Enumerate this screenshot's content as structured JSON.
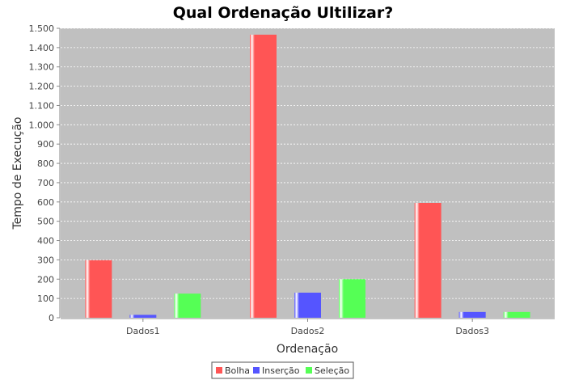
{
  "chart_data": {
    "type": "bar",
    "title": "Qual Ordenação Ultilizar?",
    "xlabel": "Ordenação",
    "ylabel": "Tempo de Execução",
    "categories": [
      "Dados1",
      "Dados2",
      "Dados3"
    ],
    "series": [
      {
        "name": "Bolha",
        "color": "#ff5555",
        "values": [
          298,
          1467,
          595
        ]
      },
      {
        "name": "Inserção",
        "color": "#5555ff",
        "values": [
          15,
          130,
          30
        ]
      },
      {
        "name": "Seleção",
        "color": "#55ff55",
        "values": [
          125,
          200,
          30
        ]
      }
    ],
    "ylim": [
      0,
      1500
    ],
    "yticks": [
      0,
      100,
      200,
      300,
      400,
      500,
      600,
      700,
      800,
      900,
      1000,
      1100,
      1200,
      1300,
      1400,
      1500
    ],
    "ytick_labels": [
      "0",
      "100",
      "200",
      "300",
      "400",
      "500",
      "600",
      "700",
      "800",
      "900",
      "1.000",
      "1.100",
      "1.200",
      "1.300",
      "1.400",
      "1.500"
    ],
    "grid": true,
    "plot_background": "#c0c0c0",
    "legend_position": "bottom"
  }
}
